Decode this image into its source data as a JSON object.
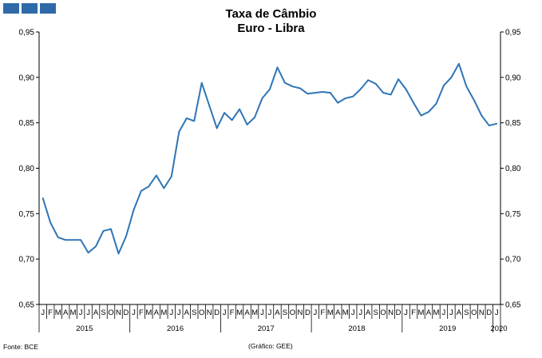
{
  "header": {
    "title_line1": "Taxa de Câmbio",
    "title_line2": "Euro - Libra",
    "logo_colors": [
      "#2f6aa8",
      "#2f6aa8",
      "#2f6aa8"
    ]
  },
  "footer": {
    "source": "Fonte: BCE",
    "credit": "(Gráfico: GEE)"
  },
  "chart_data": {
    "type": "line",
    "title": "Taxa de Câmbio Euro - Libra",
    "ylim": [
      0.65,
      0.95
    ],
    "yticks": [
      "0,65",
      "0,70",
      "0,75",
      "0,80",
      "0,85",
      "0,90",
      "0,95"
    ],
    "ytick_values": [
      0.65,
      0.7,
      0.75,
      0.8,
      0.85,
      0.9,
      0.95
    ],
    "month_labels": [
      "J",
      "F",
      "M",
      "A",
      "M",
      "J",
      "J",
      "A",
      "S",
      "O",
      "N",
      "D",
      "J",
      "F",
      "M",
      "A",
      "M",
      "J",
      "J",
      "A",
      "S",
      "O",
      "N",
      "D",
      "J",
      "F",
      "M",
      "A",
      "M",
      "J",
      "J",
      "A",
      "S",
      "O",
      "N",
      "D",
      "J",
      "F",
      "M",
      "A",
      "M",
      "J",
      "J",
      "A",
      "S",
      "O",
      "N",
      "D",
      "J",
      "F",
      "M",
      "A",
      "M",
      "J",
      "J",
      "A",
      "S",
      "O",
      "N",
      "D",
      "J"
    ],
    "years": [
      "2015",
      "2016",
      "2017",
      "2018",
      "2019",
      "2020"
    ],
    "grid": false,
    "line_color": "#2e75b6",
    "series": [
      {
        "values": [
          0.767,
          0.74,
          0.724,
          0.721,
          0.721,
          0.721,
          0.707,
          0.714,
          0.731,
          0.733,
          0.706,
          0.725,
          0.754,
          0.775,
          0.78,
          0.792,
          0.778,
          0.791,
          0.84,
          0.855,
          0.852,
          0.894,
          0.869,
          0.844,
          0.861,
          0.853,
          0.865,
          0.848,
          0.856,
          0.877,
          0.887,
          0.911,
          0.894,
          0.89,
          0.888,
          0.882,
          0.883,
          0.884,
          0.883,
          0.872,
          0.877,
          0.879,
          0.887,
          0.897,
          0.893,
          0.883,
          0.881,
          0.898,
          0.887,
          0.872,
          0.858,
          0.862,
          0.871,
          0.891,
          0.9,
          0.915,
          0.89,
          0.875,
          0.858,
          0.847,
          0.849
        ]
      }
    ]
  }
}
